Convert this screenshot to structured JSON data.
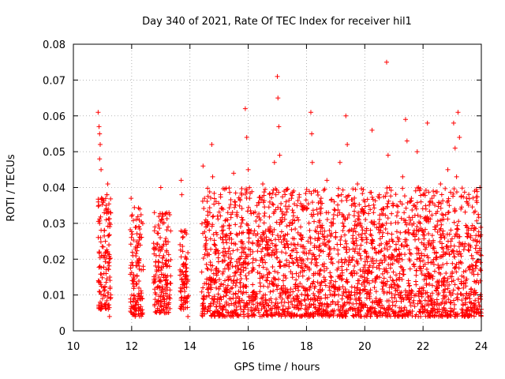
{
  "chart_data": {
    "type": "scatter",
    "title": "Day 340 of 2021, Rate Of TEC Index for receiver hil1",
    "xlabel": "GPS time / hours",
    "ylabel": "ROTI / TECUs",
    "xlim": [
      10,
      24
    ],
    "ylim": [
      0,
      0.08
    ],
    "grid": true,
    "marker": "plus",
    "color": "#ff0000",
    "xticks": [
      10,
      12,
      14,
      16,
      18,
      20,
      22,
      24
    ],
    "xtick_labels": [
      "10",
      "12",
      "14",
      "16",
      "18",
      "20",
      "22",
      "24"
    ],
    "yticks": [
      0,
      0.01,
      0.02,
      0.03,
      0.04,
      0.05,
      0.06,
      0.07,
      0.08
    ],
    "ytick_labels": [
      "0",
      "0.01",
      "0.02",
      "0.03",
      "0.04",
      "0.05",
      "0.06",
      "0.07",
      "0.08"
    ],
    "series": [
      {
        "name": "hil1",
        "points": [
          [
            10.85,
            0.061
          ],
          [
            10.88,
            0.057
          ],
          [
            10.9,
            0.055
          ],
          [
            10.92,
            0.052
          ],
          [
            10.95,
            0.045
          ],
          [
            10.9,
            0.048
          ],
          [
            10.87,
            0.035
          ],
          [
            10.9,
            0.03
          ],
          [
            10.93,
            0.026
          ],
          [
            10.88,
            0.022
          ],
          [
            10.91,
            0.018
          ],
          [
            10.86,
            0.014
          ],
          [
            10.89,
            0.011
          ],
          [
            10.92,
            0.008
          ],
          [
            10.95,
            0.006
          ],
          [
            11.0,
            0.009
          ],
          [
            11.03,
            0.012
          ],
          [
            11.05,
            0.016
          ],
          [
            11.08,
            0.021
          ],
          [
            11.1,
            0.025
          ],
          [
            11.13,
            0.031
          ],
          [
            11.15,
            0.038
          ],
          [
            11.18,
            0.041
          ],
          [
            11.12,
            0.035
          ],
          [
            11.06,
            0.028
          ],
          [
            11.2,
            0.033
          ],
          [
            11.22,
            0.024
          ],
          [
            11.25,
            0.015
          ],
          [
            11.27,
            0.009
          ],
          [
            11.24,
            0.004
          ],
          [
            11.98,
            0.037
          ],
          [
            12.0,
            0.032
          ],
          [
            12.02,
            0.027
          ],
          [
            12.04,
            0.021
          ],
          [
            12.06,
            0.015
          ],
          [
            12.08,
            0.01
          ],
          [
            12.1,
            0.006
          ],
          [
            12.12,
            0.004
          ],
          [
            12.15,
            0.008
          ],
          [
            12.18,
            0.013
          ],
          [
            12.2,
            0.019
          ],
          [
            12.22,
            0.024
          ],
          [
            12.25,
            0.029
          ],
          [
            12.28,
            0.034
          ],
          [
            12.3,
            0.026
          ],
          [
            12.33,
            0.017
          ],
          [
            12.36,
            0.009
          ],
          [
            12.38,
            0.005
          ],
          [
            12.78,
            0.033
          ],
          [
            12.8,
            0.029
          ],
          [
            12.83,
            0.023
          ],
          [
            12.86,
            0.017
          ],
          [
            12.88,
            0.012
          ],
          [
            12.9,
            0.008
          ],
          [
            12.93,
            0.015
          ],
          [
            12.95,
            0.021
          ],
          [
            12.98,
            0.026
          ],
          [
            13.0,
            0.04
          ],
          [
            13.02,
            0.031
          ],
          [
            13.05,
            0.019
          ],
          [
            13.08,
            0.011
          ],
          [
            13.1,
            0.006
          ],
          [
            13.15,
            0.014
          ],
          [
            13.2,
            0.022
          ],
          [
            13.25,
            0.029
          ],
          [
            13.28,
            0.033
          ],
          [
            13.3,
            0.018
          ],
          [
            13.32,
            0.009
          ],
          [
            13.7,
            0.042
          ],
          [
            13.72,
            0.038
          ],
          [
            13.75,
            0.026
          ],
          [
            13.78,
            0.018
          ],
          [
            13.8,
            0.012
          ],
          [
            13.85,
            0.028
          ],
          [
            13.88,
            0.02
          ],
          [
            13.9,
            0.009
          ],
          [
            13.93,
            0.004
          ],
          [
            14.45,
            0.046
          ],
          [
            14.5,
            0.037
          ],
          [
            14.55,
            0.029
          ],
          [
            14.6,
            0.021
          ],
          [
            14.65,
            0.013
          ],
          [
            14.7,
            0.007
          ],
          [
            14.75,
            0.052
          ],
          [
            14.78,
            0.043
          ],
          [
            14.8,
            0.032
          ],
          [
            14.85,
            0.024
          ],
          [
            14.9,
            0.016
          ],
          [
            14.95,
            0.009
          ],
          [
            15.0,
            0.005
          ],
          [
            15.05,
            0.038
          ],
          [
            15.1,
            0.029
          ],
          [
            15.15,
            0.021
          ],
          [
            15.2,
            0.014
          ],
          [
            15.25,
            0.008
          ],
          [
            15.3,
            0.033
          ],
          [
            15.35,
            0.026
          ],
          [
            15.4,
            0.019
          ],
          [
            15.45,
            0.012
          ],
          [
            15.5,
            0.044
          ],
          [
            15.55,
            0.036
          ],
          [
            15.6,
            0.027
          ],
          [
            15.65,
            0.017
          ],
          [
            15.7,
            0.009
          ],
          [
            15.75,
            0.006
          ],
          [
            15.8,
            0.031
          ],
          [
            15.85,
            0.022
          ],
          [
            15.9,
            0.062
          ],
          [
            15.95,
            0.054
          ],
          [
            16.0,
            0.045
          ],
          [
            16.05,
            0.037
          ],
          [
            16.1,
            0.028
          ],
          [
            16.15,
            0.019
          ],
          [
            16.2,
            0.011
          ],
          [
            16.25,
            0.006
          ],
          [
            16.3,
            0.035
          ],
          [
            16.35,
            0.025
          ],
          [
            16.4,
            0.016
          ],
          [
            16.45,
            0.009
          ],
          [
            16.5,
            0.041
          ],
          [
            16.55,
            0.032
          ],
          [
            16.6,
            0.023
          ],
          [
            16.65,
            0.014
          ],
          [
            16.7,
            0.007
          ],
          [
            16.75,
            0.029
          ],
          [
            16.8,
            0.021
          ],
          [
            16.85,
            0.013
          ],
          [
            16.9,
            0.047
          ],
          [
            16.95,
            0.038
          ],
          [
            17.0,
            0.071
          ],
          [
            17.02,
            0.065
          ],
          [
            17.05,
            0.057
          ],
          [
            17.08,
            0.049
          ],
          [
            17.1,
            0.031
          ],
          [
            17.15,
            0.022
          ],
          [
            17.2,
            0.014
          ],
          [
            17.25,
            0.008
          ],
          [
            17.3,
            0.036
          ],
          [
            17.35,
            0.027
          ],
          [
            17.4,
            0.018
          ],
          [
            17.45,
            0.01
          ],
          [
            17.5,
            0.005
          ],
          [
            17.55,
            0.033
          ],
          [
            17.6,
            0.024
          ],
          [
            17.65,
            0.016
          ],
          [
            17.7,
            0.009
          ],
          [
            17.75,
            0.038
          ],
          [
            17.8,
            0.029
          ],
          [
            17.85,
            0.02
          ],
          [
            17.9,
            0.012
          ],
          [
            17.95,
            0.006
          ],
          [
            18.0,
            0.034
          ],
          [
            18.05,
            0.025
          ],
          [
            18.1,
            0.017
          ],
          [
            18.15,
            0.061
          ],
          [
            18.18,
            0.055
          ],
          [
            18.2,
            0.047
          ],
          [
            18.25,
            0.039
          ],
          [
            18.3,
            0.028
          ],
          [
            18.35,
            0.019
          ],
          [
            18.4,
            0.011
          ],
          [
            18.45,
            0.006
          ],
          [
            18.5,
            0.037
          ],
          [
            18.55,
            0.027
          ],
          [
            18.6,
            0.018
          ],
          [
            18.65,
            0.01
          ],
          [
            18.7,
            0.042
          ],
          [
            18.75,
            0.033
          ],
          [
            18.8,
            0.023
          ],
          [
            18.85,
            0.014
          ],
          [
            18.9,
            0.008
          ],
          [
            18.95,
            0.036
          ],
          [
            19.0,
            0.026
          ],
          [
            19.05,
            0.017
          ],
          [
            19.1,
            0.01
          ],
          [
            19.15,
            0.047
          ],
          [
            19.2,
            0.038
          ],
          [
            19.25,
            0.028
          ],
          [
            19.3,
            0.019
          ],
          [
            19.35,
            0.06
          ],
          [
            19.4,
            0.052
          ],
          [
            19.45,
            0.011
          ],
          [
            19.5,
            0.006
          ],
          [
            19.55,
            0.035
          ],
          [
            19.6,
            0.025
          ],
          [
            19.65,
            0.016
          ],
          [
            19.7,
            0.009
          ],
          [
            19.75,
            0.041
          ],
          [
            19.8,
            0.031
          ],
          [
            19.85,
            0.021
          ],
          [
            19.9,
            0.013
          ],
          [
            19.95,
            0.007
          ],
          [
            20.0,
            0.036
          ],
          [
            20.05,
            0.026
          ],
          [
            20.1,
            0.017
          ],
          [
            20.15,
            0.01
          ],
          [
            20.2,
            0.004
          ],
          [
            20.25,
            0.056
          ],
          [
            20.3,
            0.033
          ],
          [
            20.35,
            0.023
          ],
          [
            20.4,
            0.015
          ],
          [
            20.45,
            0.008
          ],
          [
            20.5,
            0.038
          ],
          [
            20.55,
            0.028
          ],
          [
            20.6,
            0.019
          ],
          [
            20.65,
            0.011
          ],
          [
            20.7,
            0.005
          ],
          [
            20.75,
            0.075
          ],
          [
            20.8,
            0.049
          ],
          [
            20.85,
            0.04
          ],
          [
            20.9,
            0.03
          ],
          [
            20.95,
            0.021
          ],
          [
            21.0,
            0.013
          ],
          [
            21.05,
            0.007
          ],
          [
            21.1,
            0.035
          ],
          [
            21.15,
            0.025
          ],
          [
            21.2,
            0.016
          ],
          [
            21.25,
            0.009
          ],
          [
            21.3,
            0.043
          ],
          [
            21.35,
            0.033
          ],
          [
            21.4,
            0.059
          ],
          [
            21.45,
            0.053
          ],
          [
            21.5,
            0.014
          ],
          [
            21.55,
            0.008
          ],
          [
            21.6,
            0.037
          ],
          [
            21.65,
            0.027
          ],
          [
            21.7,
            0.018
          ],
          [
            21.75,
            0.01
          ],
          [
            21.8,
            0.05
          ],
          [
            21.85,
            0.04
          ],
          [
            21.9,
            0.03
          ],
          [
            21.95,
            0.021
          ],
          [
            22.0,
            0.012
          ],
          [
            22.05,
            0.006
          ],
          [
            22.1,
            0.034
          ],
          [
            22.15,
            0.058
          ],
          [
            22.2,
            0.024
          ],
          [
            22.25,
            0.015
          ],
          [
            22.3,
            0.009
          ],
          [
            22.35,
            0.039
          ],
          [
            22.4,
            0.029
          ],
          [
            22.45,
            0.02
          ],
          [
            22.5,
            0.012
          ],
          [
            22.55,
            0.006
          ],
          [
            22.6,
            0.041
          ],
          [
            22.65,
            0.031
          ],
          [
            22.7,
            0.022
          ],
          [
            22.75,
            0.014
          ],
          [
            22.8,
            0.008
          ],
          [
            22.85,
            0.045
          ],
          [
            22.9,
            0.035
          ],
          [
            22.95,
            0.025
          ],
          [
            23.0,
            0.016
          ],
          [
            23.05,
            0.058
          ],
          [
            23.1,
            0.051
          ],
          [
            23.15,
            0.043
          ],
          [
            23.2,
            0.061
          ],
          [
            23.25,
            0.054
          ],
          [
            23.3,
            0.034
          ],
          [
            23.35,
            0.024
          ],
          [
            23.4,
            0.015
          ],
          [
            23.45,
            0.009
          ],
          [
            23.5,
            0.037
          ],
          [
            23.55,
            0.027
          ],
          [
            23.6,
            0.018
          ],
          [
            23.65,
            0.011
          ],
          [
            23.7,
            0.006
          ],
          [
            23.75,
            0.033
          ],
          [
            23.8,
            0.023
          ],
          [
            23.85,
            0.014
          ],
          [
            23.9,
            0.008
          ],
          [
            23.95,
            0.04
          ],
          [
            24.0,
            0.021
          ],
          [
            24.0,
            0.006
          ]
        ]
      }
    ],
    "density_bands": [
      {
        "x": [
          10.85,
          11.3
        ],
        "y": [
          0.006,
          0.038
        ]
      },
      {
        "x": [
          11.95,
          12.4
        ],
        "y": [
          0.004,
          0.035
        ]
      },
      {
        "x": [
          12.75,
          13.35
        ],
        "y": [
          0.005,
          0.033
        ]
      },
      {
        "x": [
          13.65,
          13.95
        ],
        "y": [
          0.006,
          0.028
        ]
      },
      {
        "x": [
          14.4,
          24.0
        ],
        "y": [
          0.004,
          0.04
        ]
      }
    ]
  }
}
